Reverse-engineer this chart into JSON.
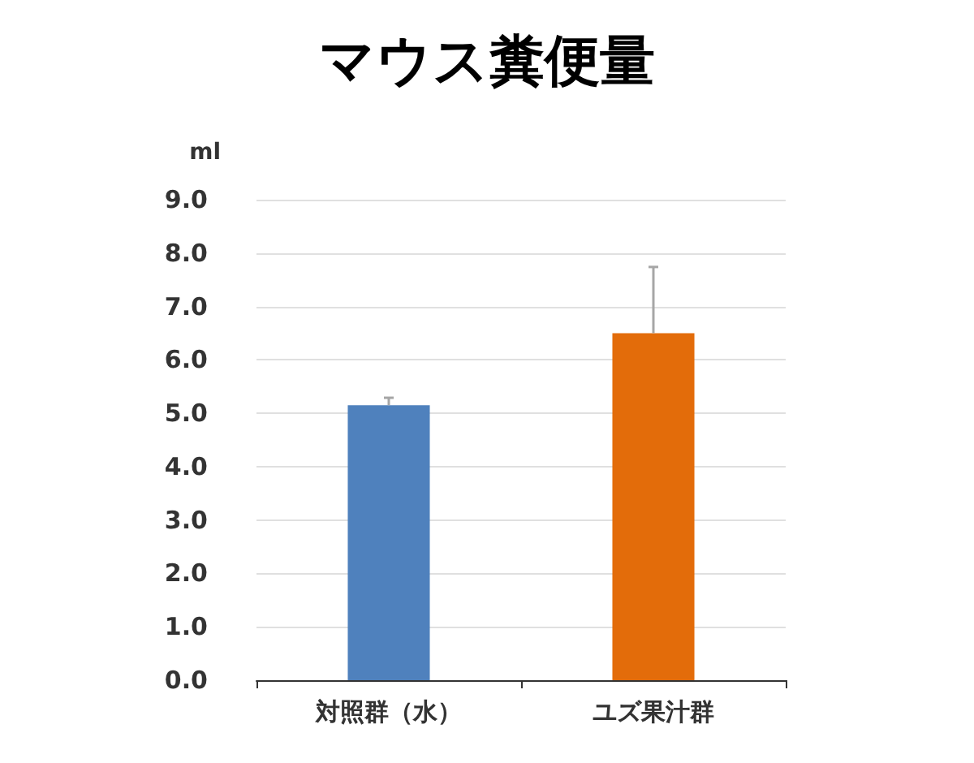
{
  "chart_data": {
    "type": "bar",
    "title": "マウス糞便量",
    "ylabel": "ml",
    "categories": [
      "対照群（水）",
      "ユズ果汁群"
    ],
    "values": [
      5.15,
      6.5
    ],
    "colors": [
      "#4f81bd",
      "#e36c0a"
    ],
    "errors": [
      [
        5.15,
        5.29
      ],
      [
        6.5,
        7.74
      ]
    ],
    "ylim": [
      0,
      9
    ],
    "yticks": [
      {
        "value": 0,
        "label": "0.0"
      },
      {
        "value": 1,
        "label": "1.0"
      },
      {
        "value": 2,
        "label": "2.0"
      },
      {
        "value": 3,
        "label": "3.0"
      },
      {
        "value": 4,
        "label": "4.0"
      },
      {
        "value": 5,
        "label": "5.0"
      },
      {
        "value": 6,
        "label": "6.0"
      },
      {
        "value": 7,
        "label": "7.0"
      },
      {
        "value": 8,
        "label": "8.0"
      },
      {
        "value": 9,
        "label": "9.0"
      }
    ],
    "grid": "y"
  }
}
